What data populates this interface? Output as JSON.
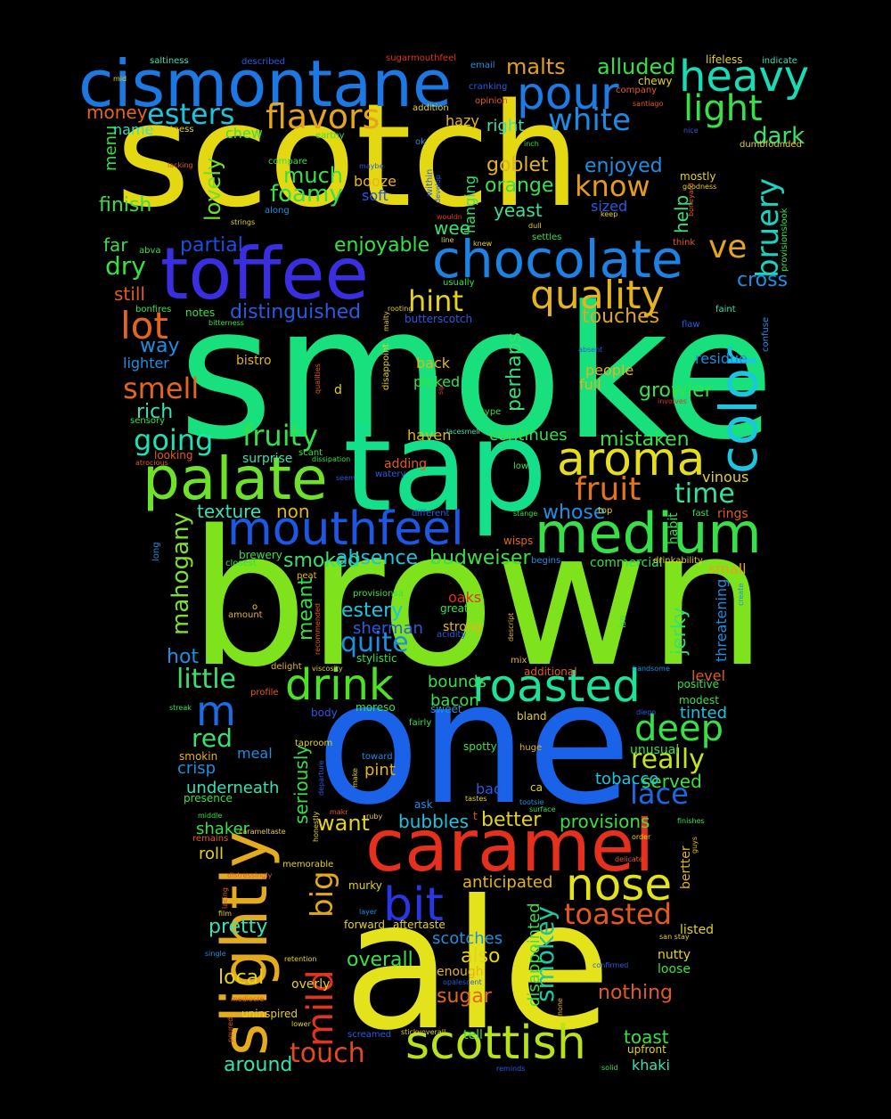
{
  "colors": {
    "background": "#000000"
  },
  "words": [
    {
      "text": "smoke",
      "color": "#18e07c"
    },
    {
      "text": "brown",
      "color": "#7ee21c"
    },
    {
      "text": "scotch",
      "color": "#e4d812"
    },
    {
      "text": "one",
      "color": "#1a62e8"
    },
    {
      "text": "ale",
      "color": "#e4e21a"
    },
    {
      "text": "tap",
      "color": "#14e08c"
    },
    {
      "text": "cismontane",
      "color": "#1c78e2"
    },
    {
      "text": "toffee",
      "color": "#3b2ee0"
    },
    {
      "text": "caramel",
      "color": "#e4301c"
    },
    {
      "text": "slightly",
      "color": "#e4ac1c"
    },
    {
      "text": "palate",
      "color": "#6ee22a"
    },
    {
      "text": "medium",
      "color": "#38e048"
    },
    {
      "text": "chocolate",
      "color": "#1c82e4"
    },
    {
      "text": "color",
      "color": "#1ac6e0"
    },
    {
      "text": "mouthfeel",
      "color": "#1c58e4"
    },
    {
      "text": "aroma",
      "color": "#e4de1c"
    },
    {
      "text": "roasted",
      "color": "#1ce29a"
    },
    {
      "text": "drink",
      "color": "#4ee024"
    },
    {
      "text": "nose",
      "color": "#e4e21a"
    },
    {
      "text": "scottish",
      "color": "#b8e21a"
    },
    {
      "text": "heavy",
      "color": "#18dcb4"
    },
    {
      "text": "pour",
      "color": "#1a7ce4"
    },
    {
      "text": "quality",
      "color": "#e4b41c"
    },
    {
      "text": "bit",
      "color": "#2a36e4"
    },
    {
      "text": "mild",
      "color": "#e4341c"
    },
    {
      "text": "big",
      "color": "#e4a81c"
    },
    {
      "text": "flavors",
      "color": "#e4a41c"
    },
    {
      "text": "light",
      "color": "#38e048"
    },
    {
      "text": "white",
      "color": "#1c8ce4"
    },
    {
      "text": "esters",
      "color": "#1cc4e0"
    },
    {
      "text": "bruery",
      "color": "#1cd2c0"
    },
    {
      "text": "lot",
      "color": "#e4661c"
    },
    {
      "text": "deep",
      "color": "#38e048"
    },
    {
      "text": "toasted",
      "color": "#e45a1c"
    },
    {
      "text": "smokey",
      "color": "#1cc8a0"
    },
    {
      "text": "touch",
      "color": "#e44a1c"
    },
    {
      "text": "fruity",
      "color": "#38e048"
    },
    {
      "text": "fruit",
      "color": "#e4741c"
    },
    {
      "text": "time",
      "color": "#38e09c"
    },
    {
      "text": "hint",
      "color": "#e4d21c"
    },
    {
      "text": "know",
      "color": "#e49c1c"
    },
    {
      "text": "ve",
      "color": "#e4a41c"
    },
    {
      "text": "going",
      "color": "#1ce2b4"
    },
    {
      "text": "smell",
      "color": "#e4661c"
    },
    {
      "text": "m",
      "color": "#1c6ce4"
    },
    {
      "text": "red",
      "color": "#38e070"
    },
    {
      "text": "little",
      "color": "#38e070"
    },
    {
      "text": "lace",
      "color": "#1c68e4"
    },
    {
      "text": "really",
      "color": "#c8e21c"
    },
    {
      "text": "quite",
      "color": "#1c90e4"
    },
    {
      "text": "mahogany",
      "color": "#7ee02a"
    },
    {
      "text": "dry",
      "color": "#38e048"
    },
    {
      "text": "dark",
      "color": "#38e070"
    },
    {
      "text": "foamy",
      "color": "#38e048"
    },
    {
      "text": "much",
      "color": "#38e048"
    },
    {
      "text": "lovely",
      "color": "#6ee02a"
    },
    {
      "text": "alluded",
      "color": "#38e048"
    },
    {
      "text": "malts",
      "color": "#e4a01c"
    },
    {
      "text": "esters2",
      "color": "#1cc4e0"
    },
    {
      "text": "enjoyed",
      "color": "#1c90e4"
    },
    {
      "text": "goblet",
      "color": "#e4b41c"
    },
    {
      "text": "orange",
      "color": "#38e048"
    },
    {
      "text": "yeast",
      "color": "#38e09c"
    },
    {
      "text": "help",
      "color": "#38e070"
    },
    {
      "text": "cross",
      "color": "#1c90e4"
    },
    {
      "text": "distinguished",
      "color": "#2a5ae4"
    },
    {
      "text": "enjoyable",
      "color": "#38e048"
    },
    {
      "text": "partial",
      "color": "#1c4ee4"
    },
    {
      "text": "touches",
      "color": "#e4a41c"
    },
    {
      "text": "perhaps",
      "color": "#38e070"
    },
    {
      "text": "growler",
      "color": "#38e048"
    },
    {
      "text": "mistaken",
      "color": "#38e048"
    },
    {
      "text": "continues",
      "color": "#38e048"
    },
    {
      "text": "smoked",
      "color": "#38e070"
    },
    {
      "text": "absence",
      "color": "#1cc4e0"
    },
    {
      "text": "budweiser",
      "color": "#38e048"
    },
    {
      "text": "whose",
      "color": "#1c90e4"
    },
    {
      "text": "texture",
      "color": "#38e0b4"
    },
    {
      "text": "non",
      "color": "#e4b41c"
    },
    {
      "text": "meant",
      "color": "#38e048"
    },
    {
      "text": "estery",
      "color": "#1cc4e0"
    },
    {
      "text": "jerky",
      "color": "#38e070"
    },
    {
      "text": "sherman",
      "color": "#2a5ae4"
    },
    {
      "text": "hot",
      "color": "#1c90e4"
    },
    {
      "text": "bounds",
      "color": "#38e048"
    },
    {
      "text": "bacon",
      "color": "#38e048"
    },
    {
      "text": "tinted",
      "color": "#1cc4e0"
    },
    {
      "text": "served",
      "color": "#38e048"
    },
    {
      "text": "tobacco",
      "color": "#1cc4e0"
    },
    {
      "text": "pint",
      "color": "#e4b41c"
    },
    {
      "text": "want",
      "color": "#e4d21c"
    },
    {
      "text": "bubbles",
      "color": "#1cc4e0"
    },
    {
      "text": "better",
      "color": "#e4d21c"
    },
    {
      "text": "provisions",
      "color": "#38e048"
    },
    {
      "text": "seriously",
      "color": "#38e048"
    },
    {
      "text": "underneath",
      "color": "#38e0b4"
    },
    {
      "text": "crisp",
      "color": "#1c90e4"
    },
    {
      "text": "shaker",
      "color": "#38e048"
    },
    {
      "text": "roll",
      "color": "#e4d21c"
    },
    {
      "text": "anticipated",
      "color": "#e4b41c"
    },
    {
      "text": "pretty",
      "color": "#38e0b4"
    },
    {
      "text": "local",
      "color": "#e4d21c"
    },
    {
      "text": "around",
      "color": "#38e0b4"
    },
    {
      "text": "overall",
      "color": "#38e048"
    },
    {
      "text": "also",
      "color": "#e4d21c"
    },
    {
      "text": "sugar",
      "color": "#e4661c"
    },
    {
      "text": "nothing",
      "color": "#e45a1c"
    },
    {
      "text": "toast",
      "color": "#38e048"
    },
    {
      "text": "khaki",
      "color": "#38e0b4"
    },
    {
      "text": "scotches",
      "color": "#1c90e4"
    },
    {
      "text": "disappointed",
      "color": "#38e048"
    },
    {
      "text": "finish",
      "color": "#38e048"
    },
    {
      "text": "menu",
      "color": "#38e048"
    },
    {
      "text": "money",
      "color": "#e4661c"
    },
    {
      "text": "name",
      "color": "#38e0b4"
    },
    {
      "text": "far",
      "color": "#38e048"
    },
    {
      "text": "still",
      "color": "#e45a1c"
    },
    {
      "text": "way",
      "color": "#1c90e4"
    },
    {
      "text": "rich",
      "color": "#38e0b4"
    },
    {
      "text": "lighter",
      "color": "#1c90e4"
    },
    {
      "text": "chew",
      "color": "#38e048"
    },
    {
      "text": "booze",
      "color": "#e4b41c"
    },
    {
      "text": "soft",
      "color": "#2a5ae4"
    },
    {
      "text": "wee",
      "color": "#38e070"
    },
    {
      "text": "hanging",
      "color": "#38e070"
    },
    {
      "text": "sized",
      "color": "#2a5ae4"
    },
    {
      "text": "right",
      "color": "#38e0b4"
    },
    {
      "text": "hazy",
      "color": "#e4b41c"
    },
    {
      "text": "residue",
      "color": "#1c90e4"
    },
    {
      "text": "full",
      "color": "#e4b41c"
    },
    {
      "text": "people",
      "color": "#e4b41c"
    },
    {
      "text": "back",
      "color": "#e4b41c"
    },
    {
      "text": "picked",
      "color": "#38e048"
    },
    {
      "text": "adding",
      "color": "#e45a1c"
    },
    {
      "text": "surprise",
      "color": "#38e0b4"
    },
    {
      "text": "haven",
      "color": "#e4b41c"
    },
    {
      "text": "vinous",
      "color": "#e4d21c"
    },
    {
      "text": "small",
      "color": "#e4a41c"
    },
    {
      "text": "commercial",
      "color": "#38e048"
    },
    {
      "text": "level",
      "color": "#e45a1c"
    },
    {
      "text": "positive",
      "color": "#38e048"
    },
    {
      "text": "unusual",
      "color": "#38e048"
    },
    {
      "text": "threatening",
      "color": "#1c90e4"
    },
    {
      "text": "strong",
      "color": "#e4b41c"
    },
    {
      "text": "great",
      "color": "#38e048"
    },
    {
      "text": "oaks",
      "color": "#e4301c"
    },
    {
      "text": "bad",
      "color": "#2a5ae4"
    },
    {
      "text": "ask",
      "color": "#1c90e4"
    },
    {
      "text": "habit",
      "color": "#38e048"
    },
    {
      "text": "rings",
      "color": "#e45a1c"
    },
    {
      "text": "modest",
      "color": "#38e048"
    },
    {
      "text": "listed",
      "color": "#e4d21c"
    },
    {
      "text": "nutty",
      "color": "#e4d21c"
    },
    {
      "text": "loose",
      "color": "#38e048"
    },
    {
      "text": "upfront",
      "color": "#e4d21c"
    },
    {
      "text": "tell",
      "color": "#38e048"
    },
    {
      "text": "enough",
      "color": "#e4b41c"
    },
    {
      "text": "overly",
      "color": "#e4d21c"
    },
    {
      "text": "uninspired",
      "color": "#e4d21c"
    },
    {
      "text": "meal",
      "color": "#1c90e4"
    },
    {
      "text": "smokin",
      "color": "#e4b41c"
    },
    {
      "text": "presence",
      "color": "#38e048"
    },
    {
      "text": "remains",
      "color": "#e45a1c"
    },
    {
      "text": "murky",
      "color": "#e4d21c"
    },
    {
      "text": "forward",
      "color": "#e4d21c"
    },
    {
      "text": "aftertaste",
      "color": "#e4d21c"
    },
    {
      "text": "memorable",
      "color": "#e4d21c"
    },
    {
      "text": "body",
      "color": "#2a5ae4"
    },
    {
      "text": "moreso",
      "color": "#38e048"
    },
    {
      "text": "sweet",
      "color": "#1c90e4"
    },
    {
      "text": "fairly",
      "color": "#38e048"
    },
    {
      "text": "spotty",
      "color": "#38e048"
    },
    {
      "text": "bland",
      "color": "#e4d21c"
    },
    {
      "text": "huge",
      "color": "#e4b41c"
    },
    {
      "text": "toward",
      "color": "#1c90e4"
    },
    {
      "text": "taproom",
      "color": "#e4d21c"
    },
    {
      "text": "delight",
      "color": "#e4b41c"
    },
    {
      "text": "streak",
      "color": "#38e048"
    },
    {
      "text": "profile",
      "color": "#e45a1c"
    },
    {
      "text": "additional",
      "color": "#e45a1c"
    },
    {
      "text": "handsome",
      "color": "#1c90e4"
    },
    {
      "text": "mix",
      "color": "#e4b41c"
    },
    {
      "text": "stylistic",
      "color": "#38e048"
    },
    {
      "text": "acidity",
      "color": "#2a5ae4"
    },
    {
      "text": "descript",
      "color": "#e4b41c"
    },
    {
      "text": "viscosity",
      "color": "#e4d21c"
    },
    {
      "text": "recommended",
      "color": "#e45a1c"
    },
    {
      "text": "provisionsa",
      "color": "#38e048"
    },
    {
      "text": "isn",
      "color": "#38e048"
    },
    {
      "text": "peat",
      "color": "#e4b41c"
    },
    {
      "text": "amount",
      "color": "#e4b41c"
    },
    {
      "text": "o",
      "color": "#e4d21c"
    },
    {
      "text": "closest",
      "color": "#38e048"
    },
    {
      "text": "brewery",
      "color": "#38e048"
    },
    {
      "text": "long",
      "color": "#1c90e4"
    },
    {
      "text": "begins",
      "color": "#1c90e4"
    },
    {
      "text": "drinkability",
      "color": "#e4d21c"
    },
    {
      "text": "create",
      "color": "#1c90e4"
    },
    {
      "text": "wisps",
      "color": "#e4661c"
    },
    {
      "text": "stange",
      "color": "#38e048"
    },
    {
      "text": "top",
      "color": "#e4d21c"
    },
    {
      "text": "fast",
      "color": "#38e048"
    },
    {
      "text": "different",
      "color": "#2a5ae4"
    },
    {
      "text": "seem",
      "color": "#2a5ae4"
    },
    {
      "text": "watery",
      "color": "#2a5ae4"
    },
    {
      "text": "scant",
      "color": "#38e048"
    },
    {
      "text": "dissipation",
      "color": "#38e048"
    },
    {
      "text": "lacesmell",
      "color": "#38e0b4"
    },
    {
      "text": "low",
      "color": "#38e048"
    },
    {
      "text": "type",
      "color": "#38e048"
    },
    {
      "text": "involves",
      "color": "#e4301c"
    },
    {
      "text": "sip",
      "color": "#e4301c"
    },
    {
      "text": "disappoint",
      "color": "#e4d21c"
    },
    {
      "text": "malty",
      "color": "#e4d21c"
    },
    {
      "text": "qualities",
      "color": "#e45a1c"
    },
    {
      "text": "d",
      "color": "#e4d21c"
    },
    {
      "text": "atrocious",
      "color": "#e45a1c"
    },
    {
      "text": "looking",
      "color": "#e45a1c"
    },
    {
      "text": "sensory",
      "color": "#38e048"
    },
    {
      "text": "bistro",
      "color": "#e4b41c"
    },
    {
      "text": "notes",
      "color": "#38e048"
    },
    {
      "text": "bonfires",
      "color": "#38e048"
    },
    {
      "text": "bitterness",
      "color": "#38e048"
    },
    {
      "text": "rooting",
      "color": "#e4d21c"
    },
    {
      "text": "butterscotch",
      "color": "#2a5ae4"
    },
    {
      "text": "usually",
      "color": "#38e048"
    },
    {
      "text": "line",
      "color": "#e4d21c"
    },
    {
      "text": "knew",
      "color": "#e4d21c"
    },
    {
      "text": "settles",
      "color": "#38e048"
    },
    {
      "text": "dull",
      "color": "#e4d21c"
    },
    {
      "text": "wouldn",
      "color": "#e4301c"
    },
    {
      "text": "develop",
      "color": "#2a5ae4"
    },
    {
      "text": "within",
      "color": "#2a5ae4"
    },
    {
      "text": "maybe",
      "color": "#2a5ae4"
    },
    {
      "text": "compare",
      "color": "#38e048"
    },
    {
      "text": "earthy",
      "color": "#38e048"
    },
    {
      "text": "ok",
      "color": "#1c90e4"
    },
    {
      "text": "inch",
      "color": "#38e048"
    },
    {
      "text": "lacking",
      "color": "#e45a1c"
    },
    {
      "text": "strings",
      "color": "#e4d21c"
    },
    {
      "text": "along",
      "color": "#1c90e4"
    },
    {
      "text": "abva",
      "color": "#38e048"
    },
    {
      "text": "keep",
      "color": "#e4d21c"
    },
    {
      "text": "think",
      "color": "#e45a1c"
    },
    {
      "text": "boneyard",
      "color": "#e45a1c"
    },
    {
      "text": "goodness",
      "color": "#e4d21c"
    },
    {
      "text": "mostly",
      "color": "#e4d21c"
    },
    {
      "text": "provisionslook",
      "color": "#38e048"
    },
    {
      "text": "dumbfounded",
      "color": "#e4d21c"
    },
    {
      "text": "nice",
      "color": "#2a5ae4"
    },
    {
      "text": "santiago",
      "color": "#e45a1c"
    },
    {
      "text": "company",
      "color": "#e45a1c"
    },
    {
      "text": "chewy",
      "color": "#e4d21c"
    },
    {
      "text": "lifeless",
      "color": "#e4d21c"
    },
    {
      "text": "indicate",
      "color": "#38e0b4"
    },
    {
      "text": "email",
      "color": "#1c90e4"
    },
    {
      "text": "sugarmouthfeel",
      "color": "#e4301c"
    },
    {
      "text": "described",
      "color": "#2a5ae4"
    },
    {
      "text": "saltiness",
      "color": "#38e0b4"
    },
    {
      "text": "mid",
      "color": "#e4d21c"
    },
    {
      "text": "sweetness",
      "color": "#e4d21c"
    },
    {
      "text": "addition",
      "color": "#e4d21c"
    },
    {
      "text": "cranking",
      "color": "#2a5ae4"
    },
    {
      "text": "opinion",
      "color": "#e45a1c"
    },
    {
      "text": "faint",
      "color": "#38e0b4"
    },
    {
      "text": "flaw",
      "color": "#2a5ae4"
    },
    {
      "text": "confuse",
      "color": "#1c90e4"
    },
    {
      "text": "absent",
      "color": "#2a5ae4"
    },
    {
      "text": "diego",
      "color": "#2a5ae4"
    },
    {
      "text": "finishes",
      "color": "#38e048"
    },
    {
      "text": "bertter",
      "color": "#e4b41c"
    },
    {
      "text": "guys",
      "color": "#e4b41c"
    },
    {
      "text": "order",
      "color": "#e4d21c"
    },
    {
      "text": "delicate",
      "color": "#e45a1c"
    },
    {
      "text": "san stay",
      "color": "#e4d21c"
    },
    {
      "text": "confirmed",
      "color": "#2a5ae4"
    },
    {
      "text": "ca",
      "color": "#e4d21c"
    },
    {
      "text": "tootsie",
      "color": "#1c90e4"
    },
    {
      "text": "surface",
      "color": "#38e048"
    },
    {
      "text": "t",
      "color": "#e45a1c"
    },
    {
      "text": "tastes",
      "color": "#e4d21c"
    },
    {
      "text": "make",
      "color": "#e4d21c"
    },
    {
      "text": "departure",
      "color": "#2a5ae4"
    },
    {
      "text": "makr",
      "color": "#e45a1c"
    },
    {
      "text": "ruby",
      "color": "#e4d21c"
    },
    {
      "text": "honestly",
      "color": "#e4d21c"
    },
    {
      "text": "middle",
      "color": "#38e048"
    },
    {
      "text": "carameltaste",
      "color": "#e4d21c"
    },
    {
      "text": "lacing",
      "color": "#e45a1c"
    },
    {
      "text": "distressingly",
      "color": "#e45a1c"
    },
    {
      "text": "film",
      "color": "#e4d21c"
    },
    {
      "text": "layer",
      "color": "#1c90e4"
    },
    {
      "text": "single",
      "color": "#1c90e4"
    },
    {
      "text": "retention",
      "color": "#e4d21c"
    },
    {
      "text": "mediocre",
      "color": "#e45a1c"
    },
    {
      "text": "poured",
      "color": "#e45a1c"
    },
    {
      "text": "lower",
      "color": "#e4d21c"
    },
    {
      "text": "screamed",
      "color": "#2a5ae4"
    },
    {
      "text": "stickyoverall",
      "color": "#e4d21c"
    },
    {
      "text": "reminds",
      "color": "#2a5ae4"
    },
    {
      "text": "solid",
      "color": "#38e048"
    },
    {
      "text": "none",
      "color": "#e4b41c"
    },
    {
      "text": "opalescent",
      "color": "#2a5ae4"
    }
  ]
}
